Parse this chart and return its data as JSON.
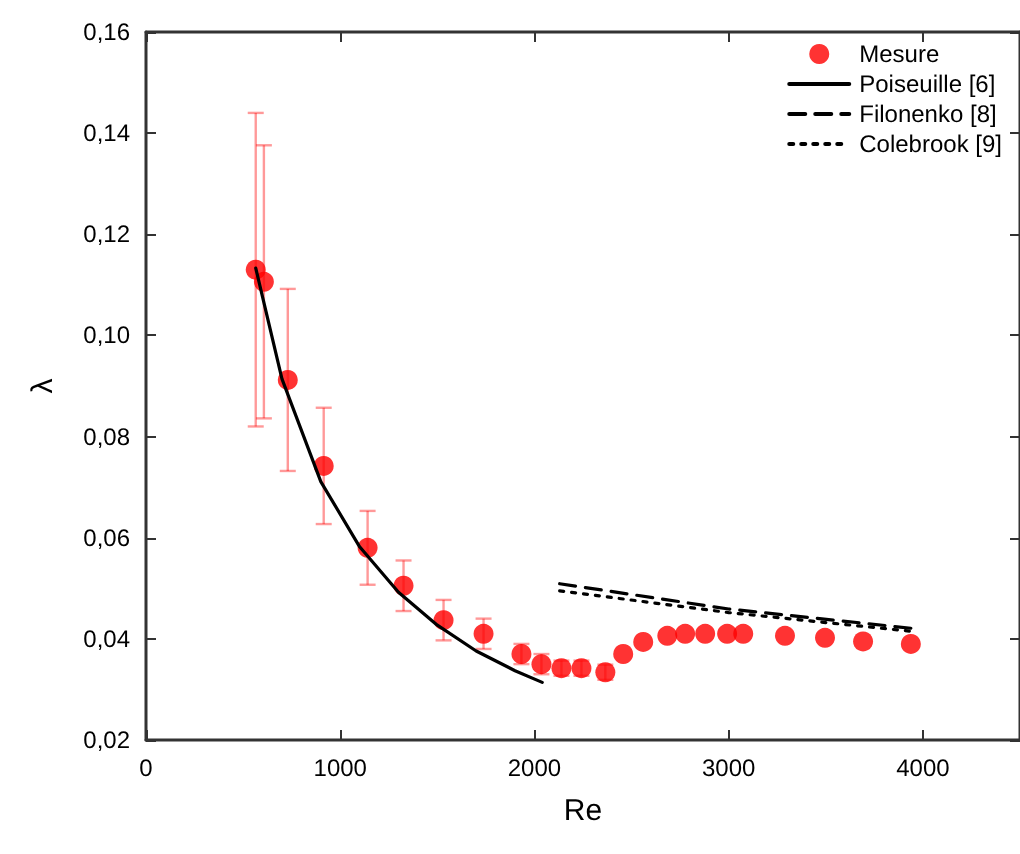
{
  "chart_data": {
    "type": "scatter",
    "xlabel": "Re",
    "ylabel": "λ",
    "xlim": [
      0,
      4500
    ],
    "ylim": [
      0.02,
      0.16
    ],
    "xticks": [
      0,
      1000,
      2000,
      3000,
      4000
    ],
    "yticks": [
      {
        "value": 0.02,
        "label": "0,02"
      },
      {
        "value": 0.04,
        "label": "0,04"
      },
      {
        "value": 0.06,
        "label": "0,06"
      },
      {
        "value": 0.08,
        "label": "0,08"
      },
      {
        "value": 0.1,
        "label": "0,10"
      },
      {
        "value": 0.12,
        "label": "0,12"
      },
      {
        "value": 0.14,
        "label": "0,14"
      },
      {
        "value": 0.16,
        "label": "0,16"
      }
    ],
    "grid": false,
    "legend": "top right",
    "series": [
      {
        "name": "Mesure",
        "marker": "circle",
        "color": "#ff0000",
        "x": [
          565,
          607,
          730,
          915,
          1141,
          1326,
          1532,
          1738,
          1933,
          2036,
          2139,
          2242,
          2365,
          2457,
          2560,
          2684,
          2776,
          2879,
          2992,
          3075,
          3290,
          3496,
          3692,
          3938
        ],
        "values": [
          0.113,
          0.1106,
          0.0912,
          0.0742,
          0.058,
          0.0505,
          0.0437,
          0.041,
          0.037,
          0.035,
          0.0342,
          0.0342,
          0.0334,
          0.037,
          0.0394,
          0.0406,
          0.041,
          0.041,
          0.041,
          0.041,
          0.0406,
          0.0402,
          0.0395,
          0.039
        ],
        "errors": [
          0.031,
          0.027,
          0.018,
          0.0115,
          0.0073,
          0.005,
          0.004,
          0.003,
          0.002,
          0.002,
          0.0015,
          0.0015,
          0.0015,
          null,
          null,
          null,
          null,
          null,
          null,
          null,
          null,
          null,
          null,
          null
        ]
      },
      {
        "name": "Poiseuille [6]",
        "type": "line",
        "marker": "none",
        "line_style": "solid",
        "color": "#000000",
        "x": [
          565,
          700,
          900,
          1100,
          1300,
          1500,
          1700,
          1900,
          2040
        ],
        "values": [
          0.1133,
          0.0914,
          0.0711,
          0.0582,
          0.0492,
          0.0427,
          0.0376,
          0.0337,
          0.0314
        ]
      },
      {
        "name": "Filonenko [8]",
        "type": "line",
        "marker": "none",
        "line_style": "dashed",
        "color": "#000000",
        "x": [
          2130,
          3000,
          3938
        ],
        "values": [
          0.0509,
          0.0459,
          0.0421
        ]
      },
      {
        "name": "Colebrook [9]",
        "type": "line",
        "marker": "none",
        "line_style": "dotted",
        "color": "#000000",
        "x": [
          2130,
          3000,
          3938
        ],
        "values": [
          0.0495,
          0.0452,
          0.0415
        ]
      }
    ]
  }
}
